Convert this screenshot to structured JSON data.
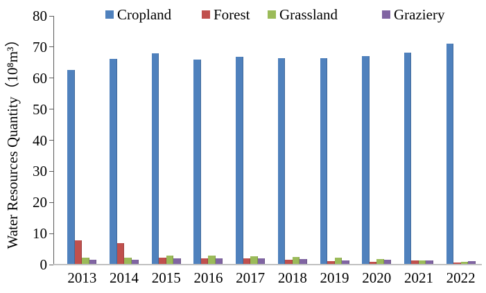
{
  "chart_data": {
    "type": "bar",
    "title": "",
    "xlabel": "",
    "ylabel": "Water Resources Quantity（10⁸m³）",
    "ylim": [
      0,
      80
    ],
    "yticks": [
      0,
      10,
      20,
      30,
      40,
      50,
      60,
      70,
      80
    ],
    "grid": "off",
    "legend_position": "top",
    "categories": [
      "2013",
      "2014",
      "2015",
      "2016",
      "2017",
      "2018",
      "2019",
      "2020",
      "2021",
      "2022"
    ],
    "series": [
      {
        "name": "Cropland",
        "color": "#4f81bd",
        "edge": "#3f689a",
        "values": [
          62.7,
          66.2,
          68.0,
          66.0,
          66.8,
          66.3,
          66.4,
          67.0,
          68.2,
          71.0
        ]
      },
      {
        "name": "Forest",
        "color": "#c0504d",
        "edge": "#9d403e",
        "values": [
          7.7,
          6.9,
          2.3,
          2.1,
          2.0,
          1.6,
          1.2,
          0.8,
          1.3,
          0.6
        ]
      },
      {
        "name": "Grassland",
        "color": "#9bbb59",
        "edge": "#7e9a47",
        "values": [
          2.2,
          2.2,
          3.0,
          2.8,
          2.6,
          2.4,
          2.2,
          1.7,
          1.4,
          0.9
        ]
      },
      {
        "name": "Graziery",
        "color": "#8064a2",
        "edge": "#685185",
        "values": [
          1.5,
          1.5,
          2.1,
          2.0,
          1.9,
          1.7,
          1.4,
          1.5,
          1.3,
          1.2
        ]
      }
    ],
    "axis_color": "#5a5a5a",
    "baseline_color": "#c0c0c0"
  },
  "legend_layout_lefts": [
    152,
    291,
    386,
    551
  ]
}
